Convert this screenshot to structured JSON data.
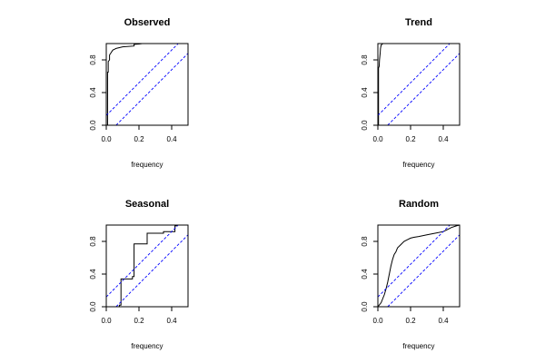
{
  "chart_data": [
    {
      "type": "line",
      "title": "Observed",
      "xlabel": "frequency",
      "ylabel": "",
      "xlim": [
        0,
        0.5
      ],
      "ylim": [
        0,
        1
      ],
      "xticks": [
        "0.0",
        "0.2",
        "0.4"
      ],
      "yticks": [
        "0.0",
        "0.4",
        "0.8"
      ],
      "series": [
        {
          "style": "solid",
          "color": "#000000",
          "x": [
            0,
            0.008,
            0.008,
            0.012,
            0.012,
            0.02,
            0.02,
            0.03,
            0.04,
            0.05,
            0.06,
            0.08,
            0.1,
            0.17,
            0.17,
            0.2,
            0.22,
            0.5
          ],
          "y": [
            0,
            0,
            0.65,
            0.65,
            0.78,
            0.8,
            0.86,
            0.89,
            0.92,
            0.93,
            0.94,
            0.95,
            0.96,
            0.97,
            0.99,
            0.995,
            1,
            1
          ]
        },
        {
          "style": "dashed",
          "color": "#0000ff",
          "x": [
            0,
            0.5
          ],
          "y": [
            0.12,
            1.12
          ]
        },
        {
          "style": "dashed",
          "color": "#0000ff",
          "x": [
            0.06,
            0.5
          ],
          "y": [
            0,
            0.88
          ]
        }
      ]
    },
    {
      "type": "line",
      "title": "Trend",
      "xlabel": "frequency",
      "ylabel": "",
      "xlim": [
        0,
        0.5
      ],
      "ylim": [
        0,
        1
      ],
      "xticks": [
        "0.0",
        "0.2",
        "0.4"
      ],
      "yticks": [
        "0.0",
        "0.4",
        "0.8"
      ],
      "series": [
        {
          "style": "solid",
          "color": "#000000",
          "x": [
            0,
            0.004,
            0.004,
            0.008,
            0.01,
            0.012,
            0.014,
            0.016,
            0.02,
            0.03,
            0.04,
            0.5
          ],
          "y": [
            0,
            0,
            0.7,
            0.72,
            0.8,
            0.84,
            0.88,
            0.94,
            0.98,
            1,
            1,
            1
          ]
        },
        {
          "style": "dashed",
          "color": "#0000ff",
          "x": [
            0,
            0.5
          ],
          "y": [
            0.12,
            1.12
          ]
        },
        {
          "style": "dashed",
          "color": "#0000ff",
          "x": [
            0.06,
            0.5
          ],
          "y": [
            0,
            0.88
          ]
        }
      ]
    },
    {
      "type": "line",
      "title": "Seasonal",
      "xlabel": "frequency",
      "ylabel": "",
      "xlim": [
        0,
        0.5
      ],
      "ylim": [
        0,
        1
      ],
      "xticks": [
        "0.0",
        "0.2",
        "0.4"
      ],
      "yticks": [
        "0.0",
        "0.4",
        "0.8"
      ],
      "series": [
        {
          "style": "solid",
          "color": "#000000",
          "x": [
            0,
            0.08,
            0.08,
            0.09,
            0.09,
            0.16,
            0.16,
            0.17,
            0.17,
            0.25,
            0.25,
            0.35,
            0.35,
            0.42,
            0.42,
            0.43,
            0.43,
            0.5
          ],
          "y": [
            0,
            0,
            0.02,
            0.02,
            0.34,
            0.34,
            0.37,
            0.37,
            0.77,
            0.77,
            0.9,
            0.9,
            0.92,
            0.92,
            0.99,
            0.99,
            1,
            1
          ]
        },
        {
          "style": "dashed",
          "color": "#0000ff",
          "x": [
            0,
            0.5
          ],
          "y": [
            0.12,
            1.12
          ]
        },
        {
          "style": "dashed",
          "color": "#0000ff",
          "x": [
            0.06,
            0.5
          ],
          "y": [
            0,
            0.88
          ]
        }
      ]
    },
    {
      "type": "line",
      "title": "Random",
      "xlabel": "frequency",
      "ylabel": "",
      "xlim": [
        0,
        0.5
      ],
      "ylim": [
        0,
        1
      ],
      "xticks": [
        "0.0",
        "0.2",
        "0.4"
      ],
      "yticks": [
        "0.0",
        "0.4",
        "0.8"
      ],
      "series": [
        {
          "style": "solid",
          "color": "#000000",
          "x": [
            0,
            0.02,
            0.03,
            0.04,
            0.05,
            0.06,
            0.07,
            0.08,
            0.09,
            0.1,
            0.11,
            0.12,
            0.14,
            0.16,
            0.18,
            0.2,
            0.22,
            0.25,
            0.3,
            0.35,
            0.4,
            0.42,
            0.45,
            0.48,
            0.5
          ],
          "y": [
            0,
            0.05,
            0.1,
            0.15,
            0.22,
            0.3,
            0.4,
            0.5,
            0.58,
            0.64,
            0.67,
            0.72,
            0.76,
            0.8,
            0.82,
            0.84,
            0.85,
            0.86,
            0.88,
            0.9,
            0.92,
            0.94,
            0.97,
            0.99,
            1
          ]
        },
        {
          "style": "dashed",
          "color": "#0000ff",
          "x": [
            0,
            0.5
          ],
          "y": [
            0.12,
            1.12
          ]
        },
        {
          "style": "dashed",
          "color": "#0000ff",
          "x": [
            0.06,
            0.5
          ],
          "y": [
            0,
            0.88
          ]
        }
      ]
    }
  ]
}
